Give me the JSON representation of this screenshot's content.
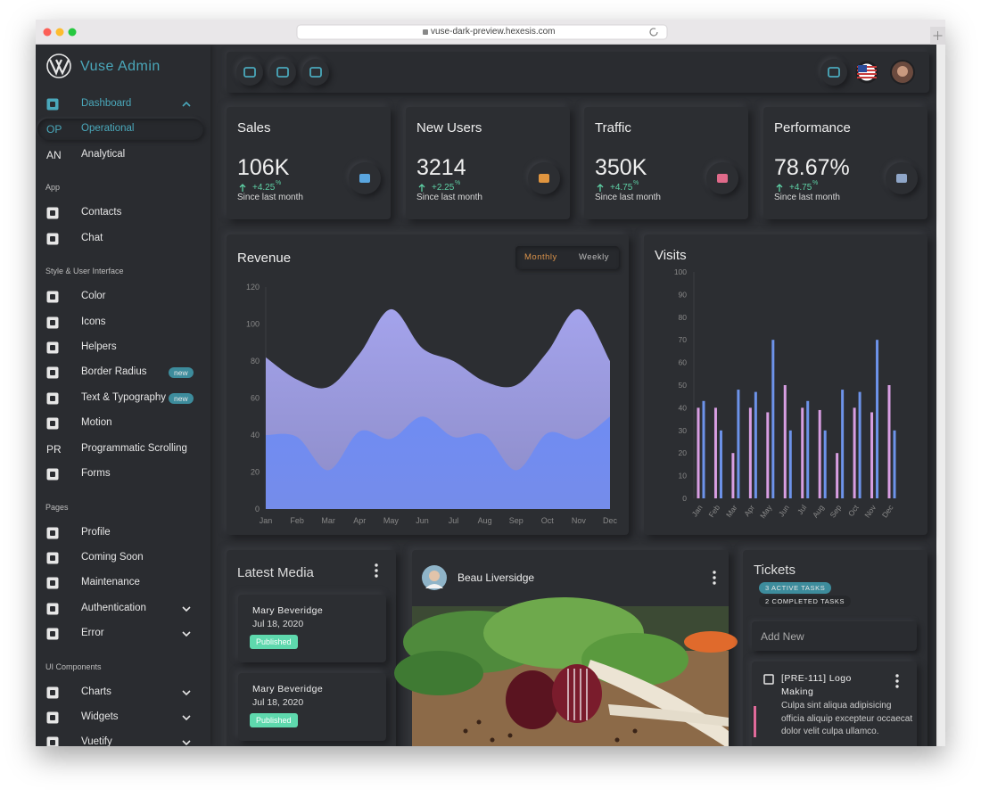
{
  "browser": {
    "url": "vuse-dark-preview.hexesis.com"
  },
  "sidebar": {
    "brand": "Vuse Admin",
    "entries": [
      {
        "label": "Dashboard",
        "active": true,
        "submenu": "open"
      },
      {
        "abbr": "OP",
        "label": "Operational",
        "active": true,
        "selected": true
      },
      {
        "abbr": "AN",
        "label": "Analytical"
      },
      {
        "heading": "App"
      },
      {
        "label": "Contacts"
      },
      {
        "label": "Chat"
      },
      {
        "heading": "Style & User Interface"
      },
      {
        "label": "Color"
      },
      {
        "label": "Icons"
      },
      {
        "label": "Helpers"
      },
      {
        "label": "Border Radius",
        "badge": "new"
      },
      {
        "label": "Text & Typography",
        "badge": "new"
      },
      {
        "label": "Motion"
      },
      {
        "abbr": "PR",
        "label": "Programmatic Scrolling"
      },
      {
        "label": "Forms"
      },
      {
        "heading": "Pages"
      },
      {
        "label": "Profile"
      },
      {
        "label": "Coming Soon"
      },
      {
        "label": "Maintenance"
      },
      {
        "label": "Authentication",
        "submenu": "closed"
      },
      {
        "label": "Error",
        "submenu": "closed"
      },
      {
        "heading": "UI Components"
      },
      {
        "label": "Charts",
        "submenu": "closed"
      },
      {
        "label": "Widgets",
        "submenu": "closed"
      },
      {
        "label": "Vuetify",
        "submenu": "closed"
      }
    ]
  },
  "stats": [
    {
      "title": "Sales",
      "value": "106K",
      "change": "+4.25",
      "unit": "%",
      "note": "Since last month",
      "icon_color": "#5aa6e0"
    },
    {
      "title": "New Users",
      "value": "3214",
      "change": "+2.25",
      "unit": "%",
      "note": "Since last month",
      "icon_color": "#e0953f"
    },
    {
      "title": "Traffic",
      "value": "350K",
      "change": "+4.75",
      "unit": "%",
      "note": "Since last month",
      "icon_color": "#e06a8a"
    },
    {
      "title": "Performance",
      "value": "78.67%",
      "change": "+4.75",
      "unit": "%",
      "note": "Since last month",
      "icon_color": "#8fa6c8"
    }
  ],
  "revenue_toggle": {
    "options": [
      "Monthly",
      "Weekly"
    ],
    "selected": 0
  },
  "chart_data": [
    {
      "type": "area",
      "title": "Revenue",
      "categories": [
        "Jan",
        "Feb",
        "Mar",
        "Apr",
        "May",
        "Jun",
        "Jul",
        "Aug",
        "Sep",
        "Oct",
        "Nov",
        "Dec"
      ],
      "series": [
        {
          "color": "#a4a3ec",
          "values": [
            82,
            70,
            66,
            84,
            108,
            87,
            80,
            69,
            67,
            85,
            108,
            80
          ]
        },
        {
          "color": "#6f8cf2",
          "values": [
            40,
            39,
            21,
            42,
            38,
            50,
            39,
            40,
            21,
            41,
            38,
            50
          ]
        }
      ],
      "ylim": [
        0,
        120
      ],
      "yticks": [
        0,
        20,
        40,
        60,
        80,
        100,
        120
      ]
    },
    {
      "type": "bar",
      "title": "Visits",
      "categories": [
        "Jan",
        "Feb",
        "Mar",
        "Apr",
        "May",
        "Jun",
        "Jul",
        "Aug",
        "Sep",
        "Oct",
        "Nov",
        "Dec"
      ],
      "series": [
        {
          "color": "#d89ee2",
          "values": [
            40,
            40,
            20,
            40,
            38,
            50,
            40,
            39,
            20,
            40,
            38,
            50
          ]
        },
        {
          "color": "#6d93ea",
          "values": [
            43,
            30,
            48,
            47,
            70,
            30,
            43,
            30,
            48,
            47,
            70,
            30
          ]
        }
      ],
      "ylim": [
        0,
        100
      ],
      "yticks": [
        0,
        10,
        20,
        30,
        40,
        50,
        60,
        70,
        80,
        90,
        100
      ]
    }
  ],
  "media": {
    "title": "Latest Media",
    "items": [
      {
        "name": "Mary Beveridge",
        "date": "Jul 18, 2020",
        "status": "Published"
      },
      {
        "name": "Mary Beveridge",
        "date": "Jul 18, 2020",
        "status": "Published"
      }
    ]
  },
  "post": {
    "author": "Beau Liversidge"
  },
  "tickets": {
    "title": "Tickets",
    "filters": [
      "3 ACTIVE TASKS",
      "2 COMPLETED TASKS"
    ],
    "placeholder": "Add New",
    "items": [
      {
        "title": "[PRE-111] Logo Making",
        "body": "Culpa sint aliqua adipisicing officia aliquip excepteur occaecat dolor velit culpa ullamco."
      }
    ]
  }
}
